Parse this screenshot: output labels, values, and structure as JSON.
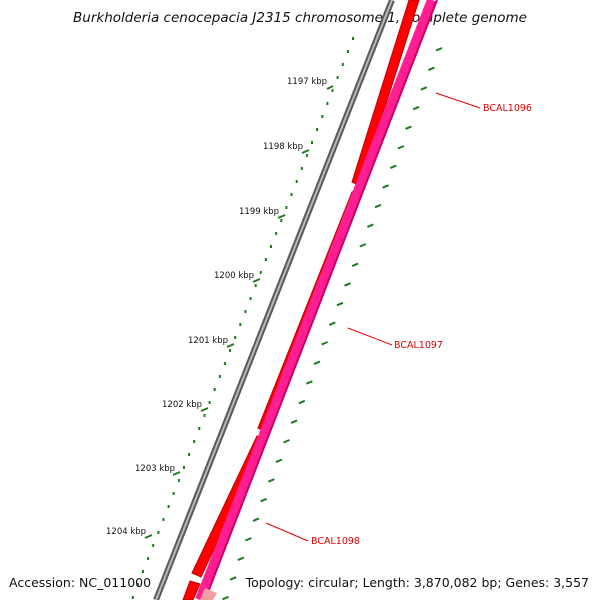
{
  "title": "Burkholderia cenocepacia J2315 chromosome 1, complete genome",
  "footer": {
    "accession": "Accession: NC_011000",
    "summary": "Topology: circular; Length: 3,870,082 bp; Genes: 3,557"
  },
  "colors": {
    "backbone": "#7a7a7a",
    "cds": "#ff0000",
    "cds_dark": "#c20000",
    "gc_skew": "#ff1f93",
    "gc_skew_dark": "#c8006a",
    "tick": "#1f7a1f",
    "gene_label": "#e00000",
    "gene_partial": "#f0a0a0"
  },
  "ticks": [
    {
      "label": "1197 kbp"
    },
    {
      "label": "1198 kbp"
    },
    {
      "label": "1199 kbp"
    },
    {
      "label": "1200 kbp"
    },
    {
      "label": "1201 kbp"
    },
    {
      "label": "1202 kbp"
    },
    {
      "label": "1203 kbp"
    },
    {
      "label": "1204 kbp"
    }
  ],
  "genes": [
    {
      "name": "BCAL1096"
    },
    {
      "name": "BCAL1097"
    },
    {
      "name": "BCAL1098"
    }
  ]
}
